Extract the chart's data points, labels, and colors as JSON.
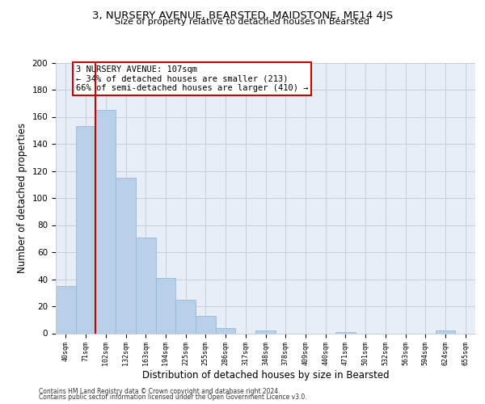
{
  "title_line1": "3, NURSERY AVENUE, BEARSTED, MAIDSTONE, ME14 4JS",
  "title_line2": "Size of property relative to detached houses in Bearsted",
  "xlabel": "Distribution of detached houses by size in Bearsted",
  "ylabel": "Number of detached properties",
  "bar_labels": [
    "40sqm",
    "71sqm",
    "102sqm",
    "132sqm",
    "163sqm",
    "194sqm",
    "225sqm",
    "255sqm",
    "286sqm",
    "317sqm",
    "348sqm",
    "378sqm",
    "409sqm",
    "440sqm",
    "471sqm",
    "501sqm",
    "532sqm",
    "563sqm",
    "594sqm",
    "624sqm",
    "655sqm"
  ],
  "bar_values": [
    35,
    153,
    165,
    115,
    71,
    41,
    25,
    13,
    4,
    0,
    2,
    0,
    0,
    0,
    1,
    0,
    0,
    0,
    0,
    2,
    0
  ],
  "bar_color": "#b8cfe8",
  "bar_edge_color": "#9ab8d8",
  "vline_color": "#cc0000",
  "vline_index": 2,
  "annotation_text": "3 NURSERY AVENUE: 107sqm\n← 34% of detached houses are smaller (213)\n66% of semi-detached houses are larger (410) →",
  "annotation_box_edge_color": "#cc0000",
  "annotation_box_face_color": "#ffffff",
  "ylim": [
    0,
    200
  ],
  "yticks": [
    0,
    20,
    40,
    60,
    80,
    100,
    120,
    140,
    160,
    180,
    200
  ],
  "grid_color": "#c8d0dc",
  "background_color": "#e8eef8",
  "footer_line1": "Contains HM Land Registry data © Crown copyright and database right 2024.",
  "footer_line2": "Contains public sector information licensed under the Open Government Licence v3.0."
}
